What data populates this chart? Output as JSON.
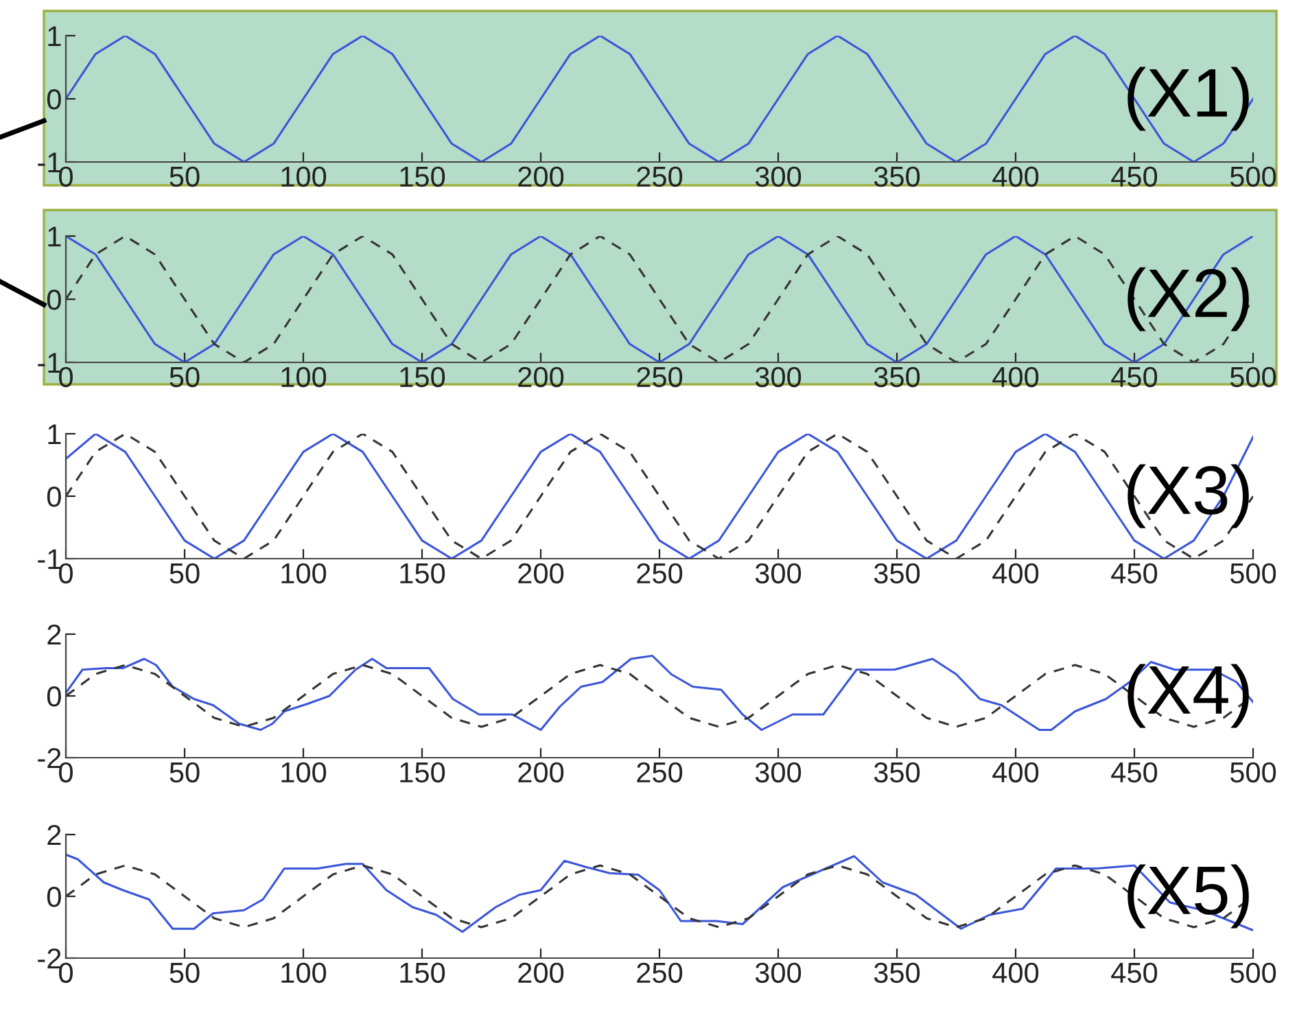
{
  "chart_data": [
    {
      "type": "line",
      "x": [
        0,
        12.5,
        25,
        37.5,
        50,
        62.5,
        75,
        87.5,
        100,
        112.5,
        125,
        137.5,
        150,
        162.5,
        175,
        187.5,
        200,
        212.5,
        225,
        237.5,
        250,
        262.5,
        275,
        287.5,
        300,
        312.5,
        325,
        337.5,
        350,
        362.5,
        375,
        387.5,
        400,
        412.5,
        425,
        437.5,
        450,
        462.5,
        475,
        487.5,
        500
      ],
      "series": [
        {
          "color": "#3a55d8",
          "values": [
            0,
            0.71,
            1,
            0.71,
            0,
            -0.71,
            -1,
            -0.71,
            0,
            0.71,
            1,
            0.71,
            0,
            -0.71,
            -1,
            -0.71,
            0,
            0.71,
            1,
            0.71,
            0,
            -0.71,
            -1,
            -0.71,
            0,
            0.71,
            1,
            0.71,
            0,
            -0.71,
            -1,
            -0.71,
            0,
            0.71,
            1,
            0.71,
            0,
            -0.71,
            -1,
            -0.71,
            0
          ]
        }
      ],
      "xlim": [
        0,
        500
      ],
      "ylim": [
        -1,
        1
      ],
      "xticks": [
        0,
        50,
        100,
        150,
        200,
        250,
        300,
        350,
        400,
        450,
        500
      ],
      "yticks": [
        -1,
        0,
        1
      ],
      "annotations": [
        "(X1)"
      ]
    },
    {
      "type": "line",
      "x": [
        0,
        12.5,
        25,
        37.5,
        50,
        62.5,
        75,
        87.5,
        100,
        112.5,
        125,
        137.5,
        150,
        162.5,
        175,
        187.5,
        200,
        212.5,
        225,
        237.5,
        250,
        262.5,
        275,
        287.5,
        300,
        312.5,
        325,
        337.5,
        350,
        362.5,
        375,
        387.5,
        400,
        412.5,
        425,
        437.5,
        450,
        462.5,
        475,
        487.5,
        500
      ],
      "series": [
        {
          "color": "#3a55d8",
          "values": [
            1,
            0.71,
            0,
            -0.71,
            -1,
            -0.71,
            0,
            0.71,
            1,
            0.71,
            0,
            -0.71,
            -1,
            -0.71,
            0,
            0.71,
            1,
            0.71,
            0,
            -0.71,
            -1,
            -0.71,
            0,
            0.71,
            1,
            0.71,
            0,
            -0.71,
            -1,
            -0.71,
            0,
            0.71,
            1,
            0.71,
            0,
            -0.71,
            -1,
            -0.71,
            0,
            0.71,
            1
          ]
        },
        {
          "color": "#333333",
          "line_style": "dashed",
          "values": [
            0,
            0.71,
            1,
            0.71,
            0,
            -0.71,
            -1,
            -0.71,
            0,
            0.71,
            1,
            0.71,
            0,
            -0.71,
            -1,
            -0.71,
            0,
            0.71,
            1,
            0.71,
            0,
            -0.71,
            -1,
            -0.71,
            0,
            0.71,
            1,
            0.71,
            0,
            -0.71,
            -1,
            -0.71,
            0,
            0.71,
            1,
            0.71,
            0,
            -0.71,
            -1,
            -0.71,
            0
          ]
        }
      ],
      "xlim": [
        0,
        500
      ],
      "ylim": [
        -1,
        1
      ],
      "xticks": [
        0,
        50,
        100,
        150,
        200,
        250,
        300,
        350,
        400,
        450,
        500
      ],
      "yticks": [
        -1,
        0,
        1
      ],
      "annotations": [
        "(X2)"
      ]
    },
    {
      "type": "line",
      "x": [
        0,
        12.5,
        25,
        37.5,
        50,
        62.5,
        75,
        87.5,
        100,
        112.5,
        125,
        137.5,
        150,
        162.5,
        175,
        187.5,
        200,
        212.5,
        225,
        237.5,
        250,
        262.5,
        275,
        287.5,
        300,
        312.5,
        325,
        337.5,
        350,
        362.5,
        375,
        387.5,
        400,
        412.5,
        425,
        437.5,
        450,
        462.5,
        475,
        487.5,
        500
      ],
      "series": [
        {
          "color": "#3a55d8",
          "values": [
            0.6,
            1,
            0.71,
            0,
            -0.71,
            -1,
            -0.71,
            0,
            0.71,
            1,
            0.71,
            0,
            -0.71,
            -1,
            -0.71,
            0,
            0.71,
            1,
            0.71,
            0,
            -0.71,
            -1,
            -0.71,
            0,
            0.71,
            1,
            0.71,
            0,
            -0.71,
            -1,
            -0.71,
            0,
            0.71,
            1,
            0.71,
            0,
            -0.71,
            -1,
            -0.71,
            0,
            0.95
          ]
        },
        {
          "color": "#333333",
          "line_style": "dashed",
          "values": [
            0,
            0.71,
            1,
            0.71,
            0,
            -0.71,
            -1,
            -0.71,
            0,
            0.71,
            1,
            0.71,
            0,
            -0.71,
            -1,
            -0.71,
            0,
            0.71,
            1,
            0.71,
            0,
            -0.71,
            -1,
            -0.71,
            0,
            0.71,
            1,
            0.71,
            0,
            -0.71,
            -1,
            -0.71,
            0,
            0.71,
            1,
            0.71,
            0,
            -0.71,
            -1,
            -0.71,
            0
          ]
        }
      ],
      "xlim": [
        0,
        500
      ],
      "ylim": [
        -1,
        1
      ],
      "xticks": [
        0,
        50,
        100,
        150,
        200,
        250,
        300,
        350,
        400,
        450,
        500
      ],
      "yticks": [
        -1,
        0,
        1
      ],
      "annotations": [
        "(X3)"
      ]
    },
    {
      "type": "line",
      "series": [
        {
          "color": "#3a55d8",
          "x": [
            0,
            7,
            17,
            24,
            33,
            38,
            45,
            54,
            62,
            73,
            82,
            87,
            92,
            102,
            111,
            122,
            129,
            135,
            153,
            163,
            174,
            188,
            200,
            208,
            217,
            226,
            238,
            247,
            255,
            264,
            276,
            285,
            293,
            306,
            319,
            333,
            349,
            365,
            375,
            385,
            394,
            410,
            415,
            425,
            438,
            448,
            457,
            467,
            483,
            493,
            500
          ],
          "values": [
            0.1,
            0.85,
            0.9,
            0.9,
            1.2,
            1.0,
            0.3,
            -0.1,
            -0.3,
            -0.9,
            -1.1,
            -0.9,
            -0.5,
            -0.25,
            0,
            0.85,
            1.2,
            0.9,
            0.9,
            -0.1,
            -0.6,
            -0.6,
            -1.1,
            -0.35,
            0.3,
            0.45,
            1.2,
            1.3,
            0.7,
            0.3,
            0.2,
            -0.6,
            -1.1,
            -0.6,
            -0.6,
            0.85,
            0.85,
            1.2,
            0.7,
            -0.1,
            -0.3,
            -1.1,
            -1.1,
            -0.5,
            -0.1,
            0.45,
            1.1,
            0.85,
            0.85,
            0.45,
            -0.2
          ]
        },
        {
          "color": "#333333",
          "line_style": "dashed",
          "x": [
            0,
            12.5,
            25,
            37.5,
            50,
            62.5,
            75,
            87.5,
            100,
            112.5,
            125,
            137.5,
            150,
            162.5,
            175,
            187.5,
            200,
            212.5,
            225,
            237.5,
            250,
            262.5,
            275,
            287.5,
            300,
            312.5,
            325,
            337.5,
            350,
            362.5,
            375,
            387.5,
            400,
            412.5,
            425,
            437.5,
            450,
            462.5,
            475,
            487.5,
            500
          ],
          "values": [
            0,
            0.71,
            1,
            0.71,
            0,
            -0.71,
            -1,
            -0.71,
            0,
            0.71,
            1,
            0.71,
            0,
            -0.71,
            -1,
            -0.71,
            0,
            0.71,
            1,
            0.71,
            0,
            -0.71,
            -1,
            -0.71,
            0,
            0.71,
            1,
            0.71,
            0,
            -0.71,
            -1,
            -0.71,
            0,
            0.71,
            1,
            0.71,
            0,
            -0.71,
            -1,
            -0.71,
            0
          ]
        }
      ],
      "xlim": [
        0,
        500
      ],
      "ylim": [
        -2,
        2
      ],
      "xticks": [
        0,
        50,
        100,
        150,
        200,
        250,
        300,
        350,
        400,
        450,
        500
      ],
      "yticks": [
        -2,
        0,
        2
      ],
      "annotations": [
        "(X4)"
      ]
    },
    {
      "type": "line",
      "series": [
        {
          "color": "#3a55d8",
          "x": [
            0,
            5,
            16,
            24,
            35,
            45,
            54,
            62,
            75,
            83,
            92,
            106,
            118,
            125,
            135,
            146,
            156,
            167,
            181,
            191,
            200,
            210,
            219,
            229,
            241,
            250,
            259,
            274,
            285,
            302,
            314,
            332,
            344,
            358,
            377,
            389,
            403,
            417,
            434,
            450,
            465,
            479,
            500
          ],
          "values": [
            1.35,
            1.2,
            0.45,
            0.2,
            -0.1,
            -1.05,
            -1.05,
            -0.55,
            -0.45,
            -0.1,
            0.9,
            0.9,
            1.05,
            1.05,
            0.2,
            -0.35,
            -0.6,
            -1.15,
            -0.35,
            0.05,
            0.2,
            1.15,
            0.95,
            0.75,
            0.7,
            0.2,
            -0.8,
            -0.8,
            -0.9,
            0.3,
            0.7,
            1.3,
            0.45,
            0.05,
            -1.05,
            -0.6,
            -0.4,
            0.9,
            0.9,
            1.0,
            -0.2,
            -0.45,
            -1.1
          ]
        },
        {
          "color": "#333333",
          "line_style": "dashed",
          "x": [
            0,
            12.5,
            25,
            37.5,
            50,
            62.5,
            75,
            87.5,
            100,
            112.5,
            125,
            137.5,
            150,
            162.5,
            175,
            187.5,
            200,
            212.5,
            225,
            237.5,
            250,
            262.5,
            275,
            287.5,
            300,
            312.5,
            325,
            337.5,
            350,
            362.5,
            375,
            387.5,
            400,
            412.5,
            425,
            437.5,
            450,
            462.5,
            475,
            487.5,
            500
          ],
          "values": [
            0,
            0.71,
            1,
            0.71,
            0,
            -0.71,
            -1,
            -0.71,
            0,
            0.71,
            1,
            0.71,
            0,
            -0.71,
            -1,
            -0.71,
            0,
            0.71,
            1,
            0.71,
            0,
            -0.71,
            -1,
            -0.71,
            0,
            0.71,
            1,
            0.71,
            0,
            -0.71,
            -1,
            -0.71,
            0,
            0.71,
            1,
            0.71,
            0,
            -0.71,
            -1,
            -0.71,
            0
          ]
        }
      ],
      "xlim": [
        0,
        500
      ],
      "ylim": [
        -2,
        2
      ],
      "xticks": [
        0,
        50,
        100,
        150,
        200,
        250,
        300,
        350,
        400,
        450,
        500
      ],
      "yticks": [
        -2,
        0,
        2
      ],
      "annotations": [
        "(X5)"
      ]
    }
  ]
}
